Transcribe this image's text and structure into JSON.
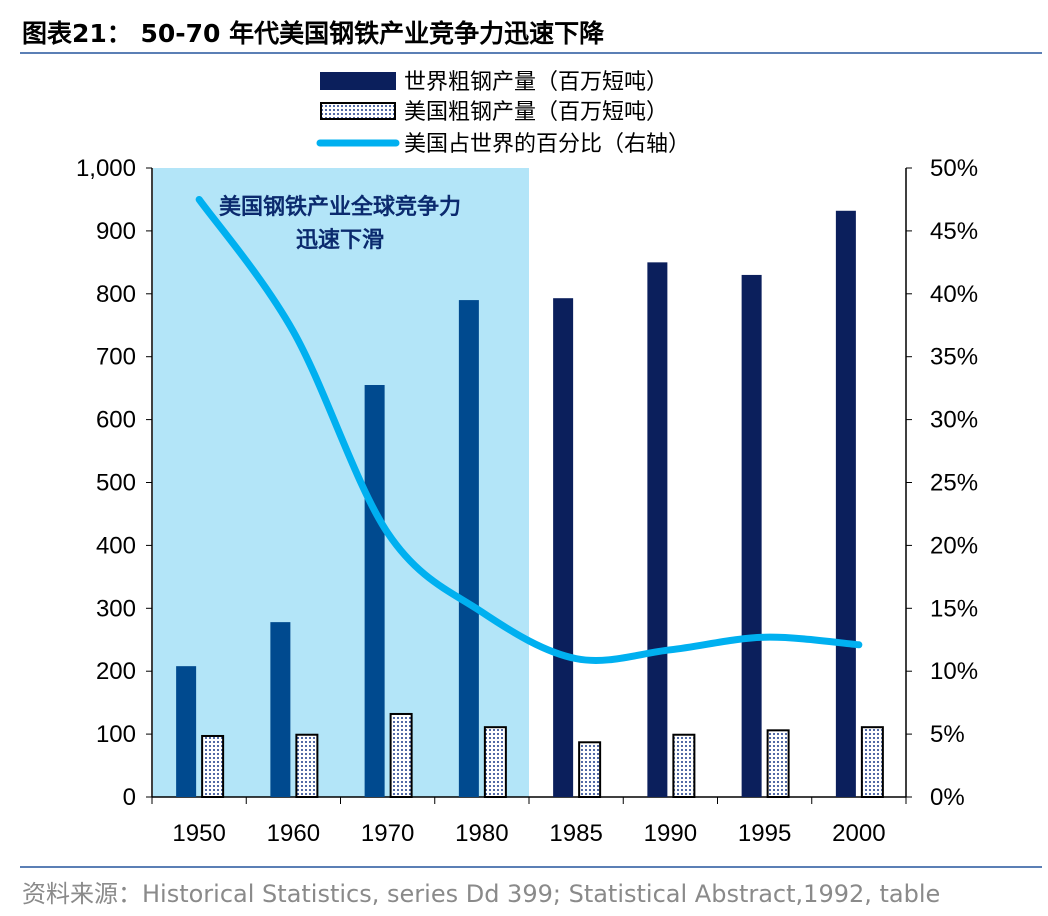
{
  "header": {
    "title": "图表21：  50-70 年代美国钢铁产业竞争力迅速下降"
  },
  "footer": {
    "source": "资料来源：Historical Statistics, series Dd 399; Statistical Abstract,1992, table"
  },
  "chart_data": {
    "type": "bar+line",
    "categories": [
      "1950",
      "1960",
      "1970",
      "1980",
      "1985",
      "1990",
      "1995",
      "2000"
    ],
    "series": [
      {
        "name": "世界粗钢产量（百万短吨）",
        "type": "bar",
        "axis": "left",
        "values": [
          208,
          278,
          655,
          790,
          793,
          850,
          830,
          932
        ],
        "color": "#0b1f5c",
        "shaded_color": "#004a8f"
      },
      {
        "name": "美国粗钢产量（百万短吨）",
        "type": "bar",
        "axis": "left",
        "values": [
          97,
          99,
          132,
          111,
          87,
          99,
          106,
          111
        ],
        "pattern": "dotted",
        "color": "#ffffff"
      },
      {
        "name": "美国占世界的百分比（右轴）",
        "type": "line",
        "axis": "right",
        "values": [
          47.5,
          37,
          21,
          14.7,
          11,
          11.7,
          12.7,
          12.1
        ],
        "color": "#00b0f0"
      }
    ],
    "left_axis": {
      "ylim": [
        0,
        1000
      ],
      "ticks": [
        "0",
        "100",
        "200",
        "300",
        "400",
        "500",
        "600",
        "700",
        "800",
        "900",
        "1,000"
      ]
    },
    "right_axis": {
      "ylim": [
        0,
        50
      ],
      "ticks": [
        "0%",
        "5%",
        "10%",
        "15%",
        "20%",
        "25%",
        "30%",
        "35%",
        "40%",
        "45%",
        "50%"
      ]
    },
    "shaded_region": {
      "from": "1950",
      "to": "1980",
      "color": "#b3e5f8",
      "annotation": [
        "美国钢铁产业全球竞争力",
        "迅速下滑"
      ]
    },
    "legend": "top-center"
  }
}
